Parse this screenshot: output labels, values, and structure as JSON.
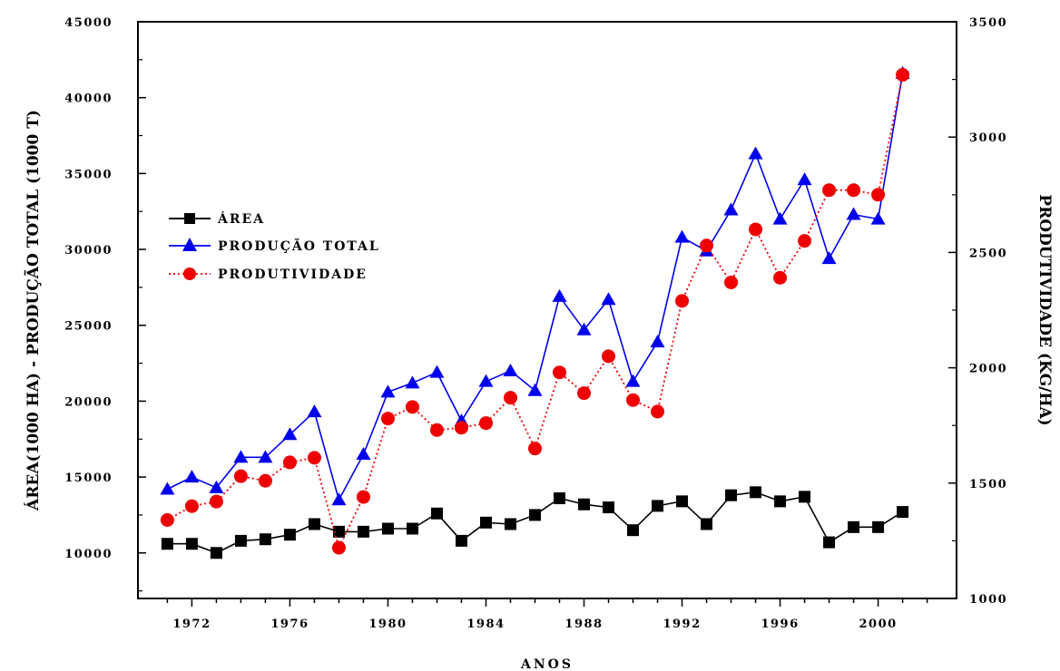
{
  "chart_data": {
    "type": "line",
    "xlabel": "ANOS",
    "ylabel_left": "ÁREA(1000 HA) - PRODUÇÃO TOTAL (1000 T)",
    "ylabel_right": "PRODUTIVIDADE (KG/HA)",
    "x_ticks": [
      "1972",
      "1976",
      "1980",
      "1984",
      "1988",
      "1992",
      "1996",
      "2000"
    ],
    "y_left_ticks": [
      "10000",
      "15000",
      "20000",
      "25000",
      "30000",
      "35000",
      "40000",
      "45000"
    ],
    "y_right_ticks": [
      "1000",
      "1500",
      "2000",
      "2500",
      "3000",
      "3500"
    ],
    "xlim": [
      1969.8,
      2003.2
    ],
    "ylim_left": [
      7000,
      45000
    ],
    "ylim_right": [
      1000,
      3500
    ],
    "x": [
      1971,
      1972,
      1973,
      1974,
      1975,
      1976,
      1977,
      1978,
      1979,
      1980,
      1981,
      1982,
      1983,
      1984,
      1985,
      1986,
      1987,
      1988,
      1989,
      1990,
      1991,
      1992,
      1993,
      1994,
      1995,
      1996,
      1997,
      1998,
      1999,
      2000,
      2001
    ],
    "legend": {
      "position": "left"
    },
    "series": [
      {
        "name": "ÁREA",
        "axis": "left",
        "color": "#000000",
        "marker": "square",
        "line": "solid",
        "values": [
          10600,
          10600,
          10000,
          10800,
          10900,
          11200,
          11900,
          11400,
          11400,
          11600,
          11600,
          12600,
          10800,
          12000,
          11900,
          12500,
          13600,
          13200,
          13000,
          11500,
          13100,
          13400,
          11900,
          13800,
          14000,
          13400,
          13700,
          10700,
          11700,
          11700,
          12700
        ]
      },
      {
        "name": "PRODUÇÃO TOTAL",
        "axis": "left",
        "color": "#0000ee",
        "marker": "triangle",
        "line": "solid",
        "values": [
          14200,
          15000,
          14300,
          16300,
          16300,
          17800,
          19300,
          13500,
          16500,
          20600,
          21200,
          21900,
          18700,
          21300,
          22000,
          20700,
          26900,
          24700,
          26700,
          21300,
          23900,
          30800,
          29900,
          32600,
          36300,
          32000,
          34600,
          29400,
          32300,
          32000,
          41600
        ]
      },
      {
        "name": "PRODUTIVIDADE",
        "axis": "right",
        "color": "#ee0000",
        "marker": "circle",
        "line": "dotted",
        "values": [
          1340,
          1400,
          1420,
          1530,
          1510,
          1590,
          1610,
          1220,
          1440,
          1780,
          1830,
          1730,
          1740,
          1760,
          1870,
          1650,
          1980,
          1890,
          2050,
          1860,
          1810,
          2290,
          2530,
          2370,
          2600,
          2390,
          2550,
          2770,
          2770,
          2750,
          3270
        ]
      }
    ]
  }
}
